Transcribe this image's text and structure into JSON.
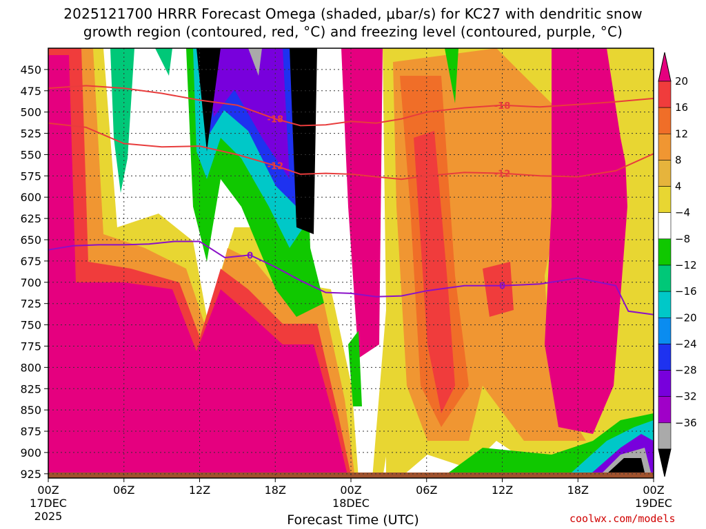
{
  "chart_data": {
    "type": "heatmap",
    "title": "2025121700 HRRR Forecast Omega (shaded, μbar/s) for KC27 with dendritic snow",
    "subtitle": "growth region (contoured, red, °C) and freezing level (contoured, purple, °C)",
    "xlabel": "Forecast Time (UTC)",
    "ylabel": "",
    "x_ticks": [
      "00Z",
      "06Z",
      "12Z",
      "18Z",
      "00Z",
      "06Z",
      "12Z",
      "18Z",
      "00Z"
    ],
    "x_tick_dates": [
      "17DEC",
      "",
      "",
      "",
      "18DEC",
      "",
      "",
      "",
      "19DEC"
    ],
    "x_first_year": "2025",
    "x_range_hours": [
      0,
      48
    ],
    "y_ticks": [
      450,
      475,
      500,
      525,
      550,
      575,
      600,
      625,
      650,
      675,
      700,
      725,
      750,
      775,
      800,
      825,
      850,
      875,
      900,
      925
    ],
    "y_range_hPa": [
      930,
      425
    ],
    "colorbar": {
      "labels": [
        "20",
        "16",
        "12",
        "8",
        "4",
        "−4",
        "−8",
        "−12",
        "−16",
        "−20",
        "−24",
        "−28",
        "−32",
        "−36"
      ],
      "colors": [
        "#e5007f",
        "#f03c3c",
        "#f06e28",
        "#f09632",
        "#e6b43c",
        "#e8d632",
        "#ffffff",
        "#10c800",
        "#00c878",
        "#00c8c8",
        "#0a8cf0",
        "#1e32f0",
        "#7800dc",
        "#a000c8",
        "#aaaaaa",
        "#000000"
      ]
    },
    "contours": {
      "dgz_minus18": {
        "label": "-18",
        "color": "#e83c3c",
        "points": [
          [
            0,
            472
          ],
          [
            3,
            469
          ],
          [
            6,
            472
          ],
          [
            9,
            478
          ],
          [
            12,
            486
          ],
          [
            15,
            492
          ],
          [
            18,
            508
          ],
          [
            20,
            516
          ],
          [
            22,
            515
          ],
          [
            24,
            511
          ],
          [
            26,
            513
          ],
          [
            28,
            508
          ],
          [
            30,
            500
          ],
          [
            33,
            495
          ],
          [
            36,
            492
          ],
          [
            39,
            494
          ],
          [
            42,
            491
          ],
          [
            45,
            488
          ],
          [
            48,
            484
          ]
        ]
      },
      "dgz_minus12": {
        "label": "-12",
        "color": "#e83c3c",
        "points": [
          [
            0,
            513
          ],
          [
            3,
            518
          ],
          [
            6,
            537
          ],
          [
            9,
            541
          ],
          [
            12,
            540
          ],
          [
            15,
            550
          ],
          [
            18,
            563
          ],
          [
            20,
            573
          ],
          [
            22,
            572
          ],
          [
            24,
            573
          ],
          [
            26,
            576
          ],
          [
            28,
            579
          ],
          [
            30,
            575
          ],
          [
            33,
            571
          ],
          [
            36,
            572
          ],
          [
            39,
            575
          ],
          [
            42,
            576
          ],
          [
            45,
            569
          ],
          [
            48,
            549
          ]
        ]
      },
      "freezing_level": {
        "label": "0",
        "color": "#8a10c8",
        "points": [
          [
            0,
            662
          ],
          [
            2,
            657
          ],
          [
            4,
            656
          ],
          [
            6,
            656
          ],
          [
            8,
            655
          ],
          [
            10,
            652
          ],
          [
            12,
            652
          ],
          [
            14,
            671
          ],
          [
            16,
            668
          ],
          [
            18,
            682
          ],
          [
            20,
            698
          ],
          [
            22,
            712
          ],
          [
            24,
            713
          ],
          [
            26,
            717
          ],
          [
            28,
            716
          ],
          [
            30,
            710
          ],
          [
            33,
            704
          ],
          [
            36,
            704
          ],
          [
            39,
            702
          ],
          [
            42,
            695
          ],
          [
            45,
            704
          ],
          [
            46,
            734
          ],
          [
            48,
            738
          ]
        ]
      }
    }
  },
  "credit": "coolwx.com/models"
}
